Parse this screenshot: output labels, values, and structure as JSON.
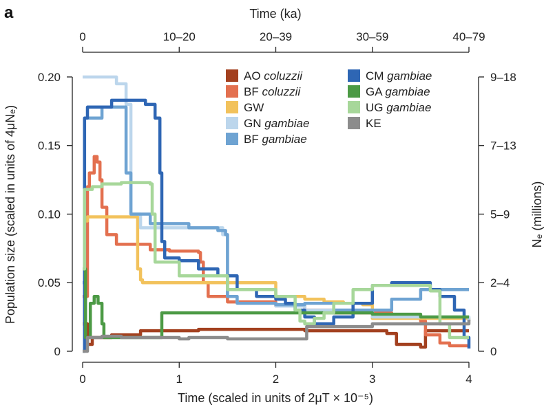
{
  "chart_data": {
    "type": "line",
    "panel_label": "a",
    "xlabel_bottom": "Time (scaled in units of 2μT × 10⁻⁵)",
    "xlabel_top": "Time (ka)",
    "ylabel_left": "Population size (scaled in units of 4μNₑ)",
    "ylabel_right": "Nₑ (millions)",
    "xlim": [
      0,
      4
    ],
    "ylim": [
      0,
      0.21
    ],
    "x_ticks": [
      0,
      1,
      2,
      3,
      4
    ],
    "x_tick_labels": [
      "0",
      "1",
      "2",
      "3",
      "4"
    ],
    "y_ticks": [
      0,
      0.05,
      0.1,
      0.15,
      0.2
    ],
    "y_tick_labels": [
      "0",
      "0.05",
      "0.10",
      "0.15",
      "0.20"
    ],
    "top_ticks": [
      0,
      1,
      2,
      3,
      4
    ],
    "top_tick_labels": [
      "0",
      "10–20",
      "20–39",
      "30–59",
      "40–79"
    ],
    "right_ticks": [
      0,
      0.05,
      0.1,
      0.15,
      0.2
    ],
    "right_tick_labels": [
      "0",
      "2–4",
      "5–9",
      "7–13",
      "9–18"
    ],
    "legend": [
      {
        "pop": "AO",
        "species": "coluzzii"
      },
      {
        "pop": "BF",
        "species": "coluzzii"
      },
      {
        "pop": "GW",
        "species": ""
      },
      {
        "pop": "GN",
        "species": "gambiae"
      },
      {
        "pop": "BF",
        "species": "gambiae"
      },
      {
        "pop": "CM",
        "species": "gambiae"
      },
      {
        "pop": "GA",
        "species": "gambiae"
      },
      {
        "pop": "UG",
        "species": "gambiae"
      },
      {
        "pop": "KE",
        "species": ""
      }
    ],
    "series": [
      {
        "color": "#a3401f",
        "x": [
          0.0,
          0.05,
          0.1,
          0.3,
          0.6,
          1.2,
          1.5,
          2.3,
          3.0,
          3.15,
          3.25,
          3.4,
          3.5,
          3.55,
          3.6,
          4.0
        ],
        "y": [
          0.02,
          0.005,
          0.01,
          0.012,
          0.015,
          0.016,
          0.016,
          0.015,
          0.015,
          0.013,
          0.005,
          0.005,
          0.003,
          0.015,
          0.015,
          0.015
        ]
      },
      {
        "color": "#e3704f",
        "x": [
          0.0,
          0.05,
          0.07,
          0.12,
          0.15,
          0.18,
          0.2,
          0.25,
          0.35,
          0.7,
          0.9,
          1.2,
          1.22,
          1.25,
          1.3,
          1.5,
          2.0,
          2.3,
          2.5,
          2.6,
          3.2,
          3.5,
          3.55,
          3.7,
          3.8,
          4.0
        ],
        "y": [
          0.04,
          0.12,
          0.13,
          0.142,
          0.138,
          0.125,
          0.105,
          0.085,
          0.078,
          0.074,
          0.073,
          0.072,
          0.065,
          0.05,
          0.04,
          0.036,
          0.033,
          0.03,
          0.03,
          0.028,
          0.025,
          0.022,
          0.012,
          0.006,
          0.004,
          0.004
        ]
      },
      {
        "color": "#f2c25c",
        "x": [
          0.0,
          0.02,
          0.05,
          0.55,
          0.57,
          0.6,
          0.62,
          1.0,
          1.5,
          2.0,
          2.3,
          2.5,
          2.7,
          2.9,
          3.0,
          3.5,
          4.0
        ],
        "y": [
          0.02,
          0.095,
          0.098,
          0.098,
          0.06,
          0.052,
          0.05,
          0.05,
          0.05,
          0.04,
          0.038,
          0.036,
          0.035,
          0.034,
          0.024,
          0.024,
          0.022
        ]
      },
      {
        "color": "#bcd6ec",
        "x": [
          0.0,
          0.02,
          0.3,
          0.35,
          0.45,
          0.5,
          0.6,
          1.3,
          1.35,
          1.45,
          1.5,
          1.6,
          2.0,
          2.3,
          3.0,
          4.0
        ],
        "y": [
          0.2,
          0.2,
          0.2,
          0.195,
          0.18,
          0.1,
          0.09,
          0.09,
          0.09,
          0.085,
          0.04,
          0.035,
          0.033,
          0.03,
          0.025,
          0.022
        ]
      },
      {
        "color": "#6ea3d2",
        "x": [
          0.0,
          0.02,
          0.2,
          0.4,
          0.45,
          0.5,
          0.7,
          1.1,
          1.4,
          1.48,
          1.5,
          1.6,
          2.0,
          2.3,
          2.6,
          3.0,
          3.2,
          3.5,
          4.0
        ],
        "y": [
          0.05,
          0.17,
          0.178,
          0.178,
          0.13,
          0.1,
          0.093,
          0.09,
          0.088,
          0.085,
          0.04,
          0.035,
          0.034,
          0.035,
          0.03,
          0.03,
          0.038,
          0.045,
          0.045
        ]
      },
      {
        "color": "#2e66b4",
        "x": [
          0.0,
          0.02,
          0.05,
          0.3,
          0.5,
          0.65,
          0.75,
          0.8,
          0.82,
          0.85,
          1.0,
          1.2,
          1.4,
          1.6,
          1.8,
          2.0,
          2.1,
          2.2,
          2.3,
          2.4,
          2.6,
          2.8,
          3.0,
          3.2,
          3.5,
          3.6,
          3.7,
          3.85,
          3.95,
          4.0
        ],
        "y": [
          0.0,
          0.17,
          0.178,
          0.183,
          0.183,
          0.18,
          0.17,
          0.13,
          0.08,
          0.068,
          0.066,
          0.06,
          0.055,
          0.045,
          0.04,
          0.038,
          0.035,
          0.03,
          0.025,
          0.02,
          0.025,
          0.035,
          0.048,
          0.05,
          0.05,
          0.045,
          0.04,
          0.03,
          0.01,
          0.002
        ]
      },
      {
        "color": "#4c9a45",
        "x": [
          0.0,
          0.03,
          0.08,
          0.12,
          0.16,
          0.2,
          0.22,
          0.3,
          0.6,
          0.8,
          0.82,
          1.2,
          2.0,
          2.3,
          3.0,
          3.5,
          3.8,
          4.0
        ],
        "y": [
          0.06,
          0.01,
          0.035,
          0.04,
          0.035,
          0.02,
          0.01,
          0.01,
          0.01,
          0.01,
          0.028,
          0.028,
          0.028,
          0.028,
          0.027,
          0.025,
          0.025,
          0.025
        ]
      },
      {
        "color": "#a7d79a",
        "x": [
          0.0,
          0.02,
          0.1,
          0.2,
          0.4,
          0.6,
          0.7,
          0.72,
          0.75,
          1.0,
          1.5,
          2.0,
          2.2,
          2.25,
          2.3,
          2.4,
          2.5,
          2.6,
          2.8,
          3.0,
          3.5,
          3.6,
          3.7,
          3.8,
          4.0
        ],
        "y": [
          0.06,
          0.118,
          0.12,
          0.122,
          0.123,
          0.123,
          0.122,
          0.1,
          0.065,
          0.055,
          0.045,
          0.04,
          0.03,
          0.022,
          0.02,
          0.024,
          0.028,
          0.035,
          0.045,
          0.048,
          0.048,
          0.044,
          0.02,
          0.01,
          0.01
        ]
      },
      {
        "color": "#8c8c8c",
        "x": [
          0.0,
          0.05,
          0.2,
          0.4,
          1.0,
          1.1,
          1.5,
          2.0,
          2.3,
          2.32,
          2.5,
          3.0,
          4.0
        ],
        "y": [
          0.0,
          0.01,
          0.011,
          0.01,
          0.009,
          0.01,
          0.009,
          0.009,
          0.009,
          0.018,
          0.018,
          0.02,
          0.023
        ]
      }
    ]
  }
}
